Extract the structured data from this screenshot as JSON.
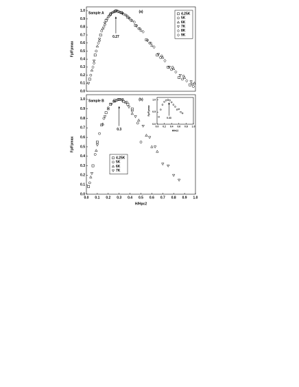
{
  "chart_data": [
    {
      "type": "scatter",
      "label": "(a)",
      "sample": "Sample A",
      "ylabel": "Fp/Fpmax",
      "annotation": {
        "text": "0.27",
        "value": 0.27
      },
      "xlim": [
        0,
        1
      ],
      "ylim": [
        0,
        1.05
      ],
      "yticks": [
        {
          "value": 0,
          "label": "0.0"
        },
        0.1,
        0.2,
        0.3,
        0.4,
        0.5,
        0.6,
        0.7,
        0.8,
        0.9,
        {
          "value": 1,
          "label": "1.0"
        }
      ],
      "legend": "upper right",
      "series": [
        {
          "name": "4.25K",
          "marker": "square",
          "color": "#000000",
          "x": [
            0.03,
            0.08,
            0.13,
            0.18,
            0.22,
            0.27,
            0.32,
            0.38,
            0.45,
            0.55,
            0.65,
            0.75,
            0.85,
            0.95
          ],
          "values": [
            0.15,
            0.45,
            0.7,
            0.88,
            0.96,
            1.0,
            0.98,
            0.92,
            0.82,
            0.64,
            0.45,
            0.3,
            0.17,
            0.08
          ]
        },
        {
          "name": "5K",
          "marker": "circle",
          "color": "#000000",
          "x": [
            0.04,
            0.09,
            0.14,
            0.19,
            0.24,
            0.29,
            0.34,
            0.4,
            0.48,
            0.58,
            0.68,
            0.78,
            0.88,
            0.98
          ],
          "values": [
            0.2,
            0.5,
            0.75,
            0.9,
            0.98,
            0.99,
            0.96,
            0.9,
            0.78,
            0.6,
            0.42,
            0.27,
            0.15,
            0.06
          ]
        },
        {
          "name": "6K",
          "marker": "triangle-up",
          "color": "#000000",
          "x": [
            0.05,
            0.1,
            0.15,
            0.2,
            0.25,
            0.3,
            0.36,
            0.42,
            0.5,
            0.6,
            0.7,
            0.8,
            0.9,
            0.99
          ],
          "values": [
            0.26,
            0.56,
            0.78,
            0.93,
            0.99,
            0.99,
            0.95,
            0.88,
            0.76,
            0.57,
            0.42,
            0.28,
            0.17,
            0.1
          ]
        },
        {
          "name": "7K",
          "marker": "triangle-down",
          "color": "#000000",
          "x": [
            0.02,
            0.07,
            0.12,
            0.17,
            0.23,
            0.28,
            0.33,
            0.39,
            0.46,
            0.56,
            0.66,
            0.76,
            0.86,
            0.96
          ],
          "values": [
            0.1,
            0.38,
            0.65,
            0.85,
            0.97,
            1.0,
            0.97,
            0.91,
            0.81,
            0.63,
            0.46,
            0.3,
            0.2,
            0.12
          ]
        },
        {
          "name": "8K",
          "marker": "diamond",
          "color": "#000000",
          "x": [
            0.06,
            0.11,
            0.16,
            0.21,
            0.26,
            0.31,
            0.37,
            0.44,
            0.52,
            0.62,
            0.72,
            0.82,
            0.92
          ],
          "values": [
            0.3,
            0.6,
            0.8,
            0.94,
            0.99,
            0.98,
            0.94,
            0.86,
            0.74,
            0.55,
            0.38,
            0.24,
            0.13
          ]
        },
        {
          "name": "9K",
          "marker": "hexagon",
          "color": "#000000",
          "x": [
            0.07,
            0.12,
            0.17,
            0.22,
            0.27,
            0.33,
            0.41,
            0.49,
            0.59,
            0.69,
            0.79,
            0.89,
            0.97
          ],
          "values": [
            0.35,
            0.63,
            0.83,
            0.95,
            1.0,
            0.97,
            0.88,
            0.78,
            0.6,
            0.44,
            0.3,
            0.19,
            0.09
          ]
        }
      ]
    },
    {
      "type": "scatter",
      "label": "(b)",
      "sample": "Sample B",
      "ylabel": "Fp/Fpmax",
      "xlabel": "H/Hpc2",
      "annotation": {
        "text": "0.3",
        "value": 0.3
      },
      "xlim": [
        0,
        1
      ],
      "ylim": [
        0,
        1.05
      ],
      "xticks": [
        {
          "value": 0,
          "label": "0.0"
        },
        0.1,
        0.2,
        0.3,
        0.4,
        0.5,
        0.6,
        0.7,
        0.8,
        0.9,
        {
          "value": 1,
          "label": "1.0"
        }
      ],
      "yticks": [
        {
          "value": 0,
          "label": "0.0"
        },
        0.1,
        0.2,
        0.3,
        0.4,
        0.5,
        0.6,
        0.7,
        0.8,
        0.9,
        {
          "value": 1,
          "label": "1.0"
        }
      ],
      "legend": "center left",
      "series": [
        {
          "name": "4.25K",
          "marker": "square",
          "color": "#000000",
          "x": [
            0.02,
            0.06,
            0.1,
            0.14,
            0.18,
            0.22,
            0.26,
            0.3,
            0.34,
            0.38,
            0.42
          ],
          "values": [
            0.08,
            0.3,
            0.55,
            0.73,
            0.86,
            0.95,
            0.99,
            1.0,
            0.98,
            0.95,
            0.9
          ]
        },
        {
          "name": "5K",
          "marker": "circle",
          "color": "#000000",
          "x": [
            0.03,
            0.08,
            0.12,
            0.16,
            0.2,
            0.25,
            0.29,
            0.33,
            0.37,
            0.42,
            0.47,
            0.5
          ],
          "values": [
            0.12,
            0.42,
            0.64,
            0.8,
            0.91,
            0.98,
            1.0,
            0.99,
            0.97,
            0.88,
            0.75,
            0.55
          ]
        },
        {
          "name": "6K",
          "marker": "triangle-up",
          "color": "#000000",
          "x": [
            0.04,
            0.09,
            0.15,
            0.2,
            0.26,
            0.31,
            0.36,
            0.42,
            0.48,
            0.55,
            0.6,
            0.65
          ],
          "values": [
            0.18,
            0.46,
            0.74,
            0.9,
            0.98,
            1.0,
            0.97,
            0.85,
            0.78,
            0.62,
            0.5,
            0.45
          ]
        },
        {
          "name": "7K",
          "marker": "triangle-down",
          "color": "#000000",
          "x": [
            0.05,
            0.1,
            0.17,
            0.23,
            0.28,
            0.33,
            0.39,
            0.45,
            0.52,
            0.58,
            0.63,
            0.7,
            0.75,
            0.8,
            0.85
          ],
          "values": [
            0.22,
            0.52,
            0.82,
            0.95,
            0.99,
            1.0,
            0.92,
            0.82,
            0.72,
            0.6,
            0.5,
            0.32,
            0.3,
            0.2,
            0.15
          ]
        }
      ]
    },
    {
      "type": "scatter",
      "ylabel": "Fp/Fpmax",
      "xlabel": "H/Hc2",
      "annotation": {
        "text": "0.33",
        "value": 0.33
      },
      "xlim": [
        0,
        1
      ],
      "ylim": [
        0,
        1.1
      ],
      "xticks": [
        {
          "value": 0,
          "label": "0.0"
        },
        0.2,
        0.4,
        0.6,
        0.8,
        {
          "value": 1,
          "label": "1.0"
        }
      ],
      "yticks": [
        {
          "value": 0,
          "label": "0.0"
        },
        0.5,
        {
          "value": 1,
          "label": "1.0"
        }
      ],
      "series": [
        {
          "marker": "circle",
          "color": "#000000",
          "x": [
            0.05,
            0.1,
            0.15,
            0.2,
            0.25,
            0.3,
            0.35,
            0.4,
            0.45,
            0.5,
            0.55,
            0.6,
            0.65,
            0.7
          ],
          "values": [
            0.3,
            0.6,
            0.8,
            0.92,
            0.98,
            1.0,
            0.98,
            0.9,
            0.8,
            0.72,
            0.6,
            0.62,
            0.5,
            0.45
          ]
        }
      ]
    }
  ]
}
